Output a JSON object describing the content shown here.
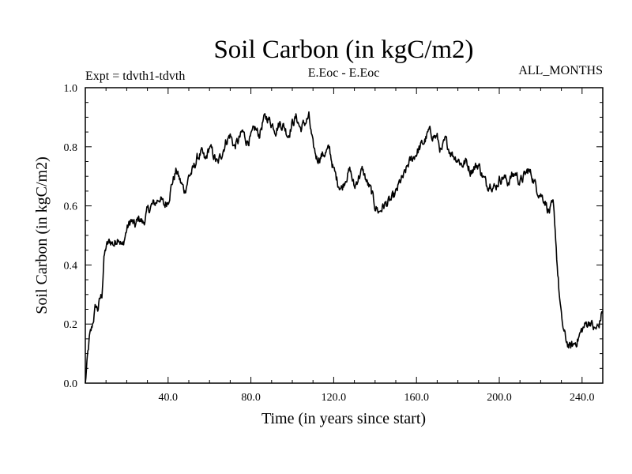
{
  "colors": {
    "line": "#000000",
    "background": "#ffffff"
  },
  "chart_data": {
    "type": "line",
    "title": "Soil Carbon (in kgC/m2)",
    "subtitle_left": "Expt = tdvth1-tdvth",
    "subtitle_center": "E.Eoc - E.Eoc",
    "subtitle_right": "ALL_MONTHS",
    "xlabel": "Time (in years since start)",
    "ylabel": "Soil Carbon (in kgC/m2)",
    "xlim": [
      0,
      250
    ],
    "ylim": [
      0,
      1.0
    ],
    "xticks": [
      40,
      80,
      120,
      160,
      200,
      240
    ],
    "xtick_labels": [
      "40.0",
      "80.0",
      "120.0",
      "160.0",
      "200.0",
      "240.0"
    ],
    "yticks": [
      0,
      0.2,
      0.4,
      0.6,
      0.8,
      1.0
    ],
    "ytick_labels": [
      "0.0",
      "0.2",
      "0.4",
      "0.6",
      "0.8",
      "1.0"
    ],
    "series": [
      {
        "name": "Soil Carbon",
        "x": [
          0,
          1,
          2,
          3,
          4,
          5,
          6,
          7,
          8,
          9,
          10,
          12,
          14,
          16,
          18,
          20,
          22,
          24,
          26,
          28,
          30,
          32,
          34,
          36,
          38,
          40,
          42,
          44,
          46,
          48,
          50,
          52,
          54,
          56,
          58,
          60,
          62,
          64,
          66,
          68,
          70,
          72,
          74,
          76,
          78,
          80,
          82,
          84,
          86,
          88,
          90,
          92,
          94,
          96,
          98,
          100,
          102,
          104,
          106,
          108,
          110,
          112,
          114,
          116,
          118,
          120,
          122,
          124,
          126,
          128,
          130,
          132,
          134,
          136,
          138,
          140,
          142,
          144,
          146,
          148,
          150,
          152,
          154,
          156,
          158,
          160,
          162,
          164,
          166,
          168,
          170,
          172,
          174,
          176,
          178,
          180,
          182,
          184,
          186,
          188,
          190,
          192,
          194,
          196,
          198,
          200,
          202,
          204,
          206,
          208,
          210,
          212,
          214,
          216,
          218,
          220,
          222,
          224,
          226,
          227,
          228,
          229,
          230,
          231,
          232,
          234,
          236,
          238,
          240,
          242,
          244,
          246,
          248,
          250
        ],
        "values": [
          0.0,
          0.08,
          0.15,
          0.18,
          0.22,
          0.26,
          0.25,
          0.28,
          0.3,
          0.42,
          0.46,
          0.48,
          0.47,
          0.5,
          0.46,
          0.52,
          0.55,
          0.53,
          0.56,
          0.54,
          0.58,
          0.6,
          0.61,
          0.63,
          0.6,
          0.62,
          0.68,
          0.72,
          0.68,
          0.65,
          0.7,
          0.72,
          0.76,
          0.78,
          0.75,
          0.8,
          0.77,
          0.74,
          0.78,
          0.82,
          0.84,
          0.8,
          0.82,
          0.85,
          0.82,
          0.83,
          0.86,
          0.84,
          0.89,
          0.9,
          0.88,
          0.86,
          0.88,
          0.87,
          0.84,
          0.88,
          0.9,
          0.86,
          0.88,
          0.9,
          0.8,
          0.76,
          0.77,
          0.78,
          0.79,
          0.72,
          0.68,
          0.66,
          0.7,
          0.72,
          0.66,
          0.7,
          0.72,
          0.68,
          0.65,
          0.6,
          0.58,
          0.6,
          0.61,
          0.62,
          0.64,
          0.68,
          0.7,
          0.74,
          0.76,
          0.78,
          0.8,
          0.82,
          0.85,
          0.84,
          0.83,
          0.78,
          0.82,
          0.79,
          0.77,
          0.76,
          0.74,
          0.75,
          0.72,
          0.73,
          0.74,
          0.7,
          0.67,
          0.68,
          0.66,
          0.69,
          0.7,
          0.68,
          0.7,
          0.71,
          0.68,
          0.7,
          0.72,
          0.7,
          0.66,
          0.64,
          0.62,
          0.58,
          0.6,
          0.52,
          0.4,
          0.3,
          0.22,
          0.18,
          0.15,
          0.12,
          0.13,
          0.15,
          0.18,
          0.2,
          0.21,
          0.18,
          0.19,
          0.25
        ]
      }
    ]
  }
}
